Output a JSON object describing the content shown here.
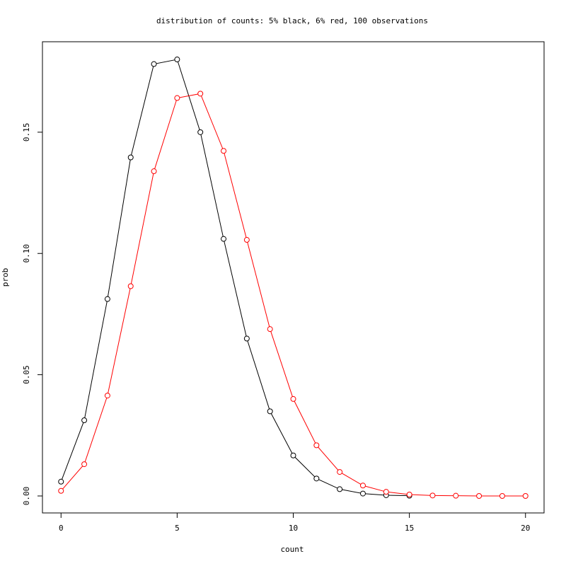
{
  "chart_data": {
    "type": "line",
    "title": "distribution of counts: 5% black, 6% red, 100 observations",
    "x_label": "count",
    "y_label": "prob",
    "xlim": [
      -0.8,
      20.8
    ],
    "ylim": [
      -0.007,
      0.1873
    ],
    "xticks": [
      0,
      5,
      10,
      15,
      20
    ],
    "yticks": [
      {
        "value": 0,
        "label": "0.00"
      },
      {
        "value": 0.05,
        "label": "0.05"
      },
      {
        "value": 0.1,
        "label": "0.10"
      },
      {
        "value": 0.15,
        "label": "0.15"
      }
    ],
    "series": [
      {
        "color": "#000000",
        "x": [
          0,
          1,
          2,
          3,
          4,
          5,
          6,
          7,
          8,
          9,
          10,
          11,
          12,
          13,
          14,
          15
        ],
        "values": [
          0.0059,
          0.0312,
          0.0812,
          0.1396,
          0.1781,
          0.18,
          0.15,
          0.106,
          0.0649,
          0.0349,
          0.0167,
          0.0072,
          0.0028,
          0.001,
          0.0003,
          0.0001
        ]
      },
      {
        "color": "#ff0000",
        "x": [
          0,
          1,
          2,
          3,
          4,
          5,
          6,
          7,
          8,
          9,
          10,
          11,
          12,
          13,
          14,
          15,
          16,
          17,
          18,
          19,
          20
        ],
        "values": [
          0.0021,
          0.0131,
          0.0414,
          0.0865,
          0.1339,
          0.1641,
          0.1659,
          0.1423,
          0.1056,
          0.0688,
          0.04,
          0.0209,
          0.0099,
          0.0043,
          0.0017,
          0.0006,
          0.0002,
          0.0001,
          0.0,
          0.0,
          0.0
        ]
      }
    ]
  }
}
